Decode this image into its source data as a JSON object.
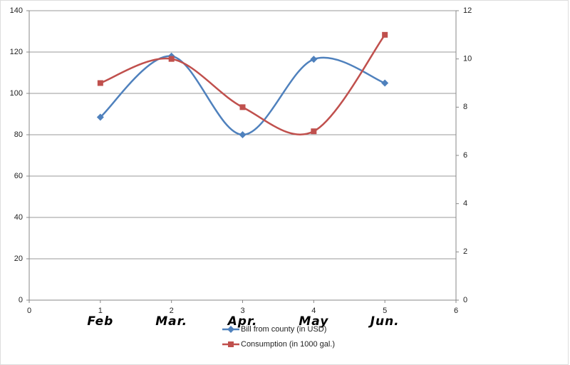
{
  "chart_data": {
    "type": "line",
    "xlim": [
      0,
      6
    ],
    "xticks": [
      0,
      1,
      2,
      3,
      4,
      5,
      6
    ],
    "ylim": [
      0,
      140
    ],
    "yticks": [
      0,
      20,
      40,
      60,
      80,
      100,
      120,
      140
    ],
    "y2lim": [
      0,
      12
    ],
    "y2ticks": [
      0,
      2,
      4,
      6,
      8,
      10,
      12
    ],
    "grid": true,
    "smooth": true,
    "legend": "bottom",
    "annotations": [
      "Feb",
      "Mar.",
      "Apr.",
      "May",
      "Jun."
    ],
    "series": [
      {
        "name": "Bill from county (in USD)",
        "color": "#4f81bd",
        "marker": "diamond",
        "x": [
          1,
          2,
          3,
          4,
          5
        ],
        "values": [
          88.5,
          118,
          80,
          116.5,
          105
        ]
      },
      {
        "name": "Consumption (in 1000 gal.)",
        "color": "#c0504d",
        "marker": "square",
        "axis": "y2",
        "x": [
          1,
          2,
          3,
          4,
          5
        ],
        "values": [
          9,
          10,
          8,
          7,
          11
        ]
      }
    ]
  }
}
